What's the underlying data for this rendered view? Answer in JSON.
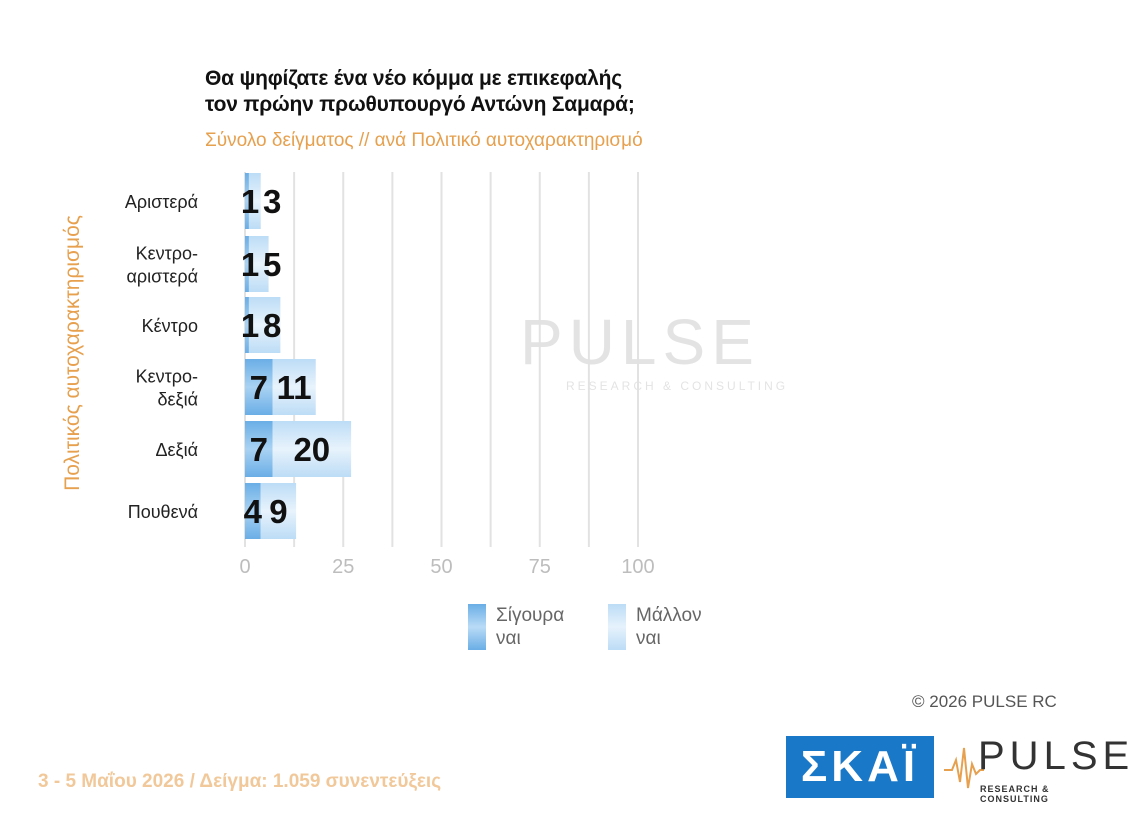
{
  "header": {
    "title_line1": "Θα ψηφίζατε ένα νέο κόμμα με επικεφαλής",
    "title_line2": "τον πρώην πρωθυπουργό Αντώνη Σαμαρά;",
    "subtitle": "Σύνολο δείγματος // ανά Πολιτικό    αυτοχαρακτηρισμό"
  },
  "chart_data": {
    "type": "bar",
    "orientation": "horizontal",
    "stacked": true,
    "ylabel": "Πολιτικός αυτοχαρακτηρισμός",
    "categories": [
      [
        "Αριστερά"
      ],
      [
        "Κεντρο-",
        "αριστερά"
      ],
      [
        "Κέντρο"
      ],
      [
        "Κεντρο-",
        "δεξιά"
      ],
      [
        "Δεξιά"
      ],
      [
        "Πουθενά"
      ]
    ],
    "series": [
      {
        "name": "Σίγουρα ναι",
        "values": [
          1,
          1,
          1,
          7,
          7,
          4
        ],
        "color": "#6aaee6"
      },
      {
        "name": "Μάλλον ναι",
        "values": [
          3,
          5,
          8,
          11,
          20,
          9
        ],
        "color": "#bcdcf6"
      }
    ],
    "value_labels": [
      [
        "1",
        "3"
      ],
      [
        "1",
        "5"
      ],
      [
        "1",
        "8"
      ],
      [
        "7",
        "11"
      ],
      [
        "7",
        "20"
      ],
      [
        "4",
        "9"
      ]
    ],
    "xlim": [
      0,
      100
    ],
    "xticks": [
      0,
      25,
      50,
      75,
      100
    ],
    "grid": true,
    "legend_position": "bottom"
  },
  "legend": {
    "items": [
      {
        "line1": "Σίγουρα",
        "line2": "ναι"
      },
      {
        "line1": "Μάλλον",
        "line2": "ναι"
      }
    ]
  },
  "watermark": {
    "word": "PULSE",
    "sub": "RESEARCH & CONSULTING"
  },
  "footer": {
    "copyright": "©  2026  PULSE RC",
    "fieldwork": "3 - 5  Μαΐου 2026  /  Δείγμα:  1.059 συνεντεύξεις",
    "skai_logo": "ΣΚΑΪ",
    "pulse_logo": "PULSE",
    "pulse_logo_sub": "RESEARCH & CONSULTING"
  }
}
